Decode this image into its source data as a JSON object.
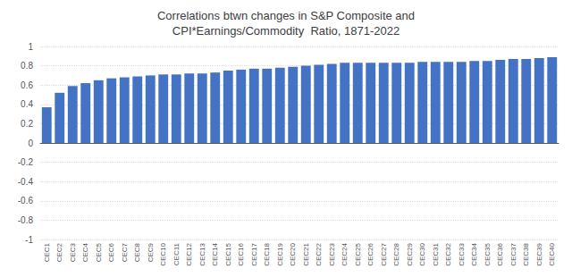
{
  "chart_data": {
    "type": "bar",
    "title": "Correlations btwn changes in S&P Composite and\nCPI*Earnings/Commodity  Ratio, 1871-2022",
    "categories": [
      "CEC1",
      "CEC2",
      "CEC3",
      "CEC4",
      "CEC5",
      "CEC6",
      "CEC7",
      "CEC8",
      "CEC9",
      "CEC10",
      "CEC11",
      "CEC12",
      "CEC13",
      "CEC14",
      "CEC15",
      "CEC16",
      "CEC17",
      "CEC18",
      "CEC19",
      "CEC20",
      "CEC21",
      "CEC22",
      "CEC23",
      "CEC24",
      "CEC25",
      "CEC26",
      "CEC27",
      "CEC28",
      "CEC29",
      "CEC30",
      "CEC31",
      "CEC32",
      "CEC33",
      "CEC34",
      "CEC35",
      "CEC36",
      "CEC37",
      "CEC38",
      "CEC39",
      "CEC40"
    ],
    "values": [
      0.37,
      0.52,
      0.59,
      0.62,
      0.65,
      0.67,
      0.68,
      0.69,
      0.7,
      0.71,
      0.71,
      0.72,
      0.72,
      0.73,
      0.75,
      0.76,
      0.77,
      0.77,
      0.78,
      0.79,
      0.8,
      0.81,
      0.82,
      0.83,
      0.83,
      0.83,
      0.83,
      0.83,
      0.83,
      0.84,
      0.84,
      0.84,
      0.84,
      0.85,
      0.85,
      0.86,
      0.87,
      0.87,
      0.88,
      0.89
    ],
    "color": "#4472C4",
    "ylim": [
      -1,
      1
    ],
    "yticks": [
      -1,
      -0.8,
      -0.6,
      -0.4,
      -0.2,
      0,
      0.2,
      0.4,
      0.6,
      0.8,
      1
    ],
    "grid": true
  }
}
